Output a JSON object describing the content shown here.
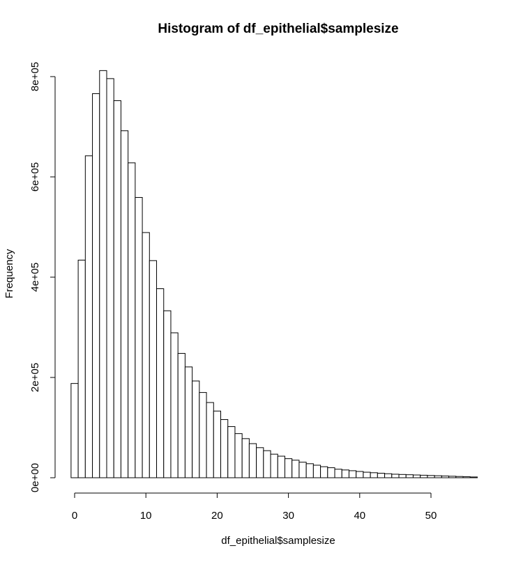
{
  "chart_data": {
    "type": "bar",
    "title": "Histogram of df_epithelial$samplesize",
    "xlabel": "df_epithelial$samplesize",
    "ylabel": "Frequency",
    "bin_width": 1,
    "bin_start": 0,
    "values": [
      188000,
      434000,
      642000,
      766000,
      812000,
      796000,
      752000,
      692000,
      628000,
      559000,
      489000,
      433000,
      377000,
      333000,
      289000,
      248000,
      221000,
      193000,
      170000,
      150000,
      133000,
      116000,
      102000,
      88000,
      78000,
      68000,
      60000,
      54000,
      47000,
      43000,
      38000,
      35000,
      31000,
      28000,
      25000,
      22000,
      20000,
      17000,
      15500,
      14000,
      12500,
      11000,
      10000,
      9000,
      8000,
      7000,
      6500,
      6000,
      5500,
      5000,
      4500,
      4000,
      3500,
      3000,
      2500,
      2000,
      1500
    ],
    "xlim": [
      0,
      57
    ],
    "ylim": [
      0,
      800000
    ],
    "x_ticks": [
      0,
      10,
      20,
      30,
      40,
      50
    ],
    "x_tick_labels": [
      "0",
      "10",
      "20",
      "30",
      "40",
      "50"
    ],
    "y_ticks": [
      0,
      200000,
      400000,
      600000,
      800000
    ],
    "y_tick_labels": [
      "0e+00",
      "2e+05",
      "4e+05",
      "6e+05",
      "8e+05"
    ],
    "grid": false,
    "colors": {
      "bar_fill": "#ffffff",
      "bar_stroke": "#000000"
    }
  }
}
